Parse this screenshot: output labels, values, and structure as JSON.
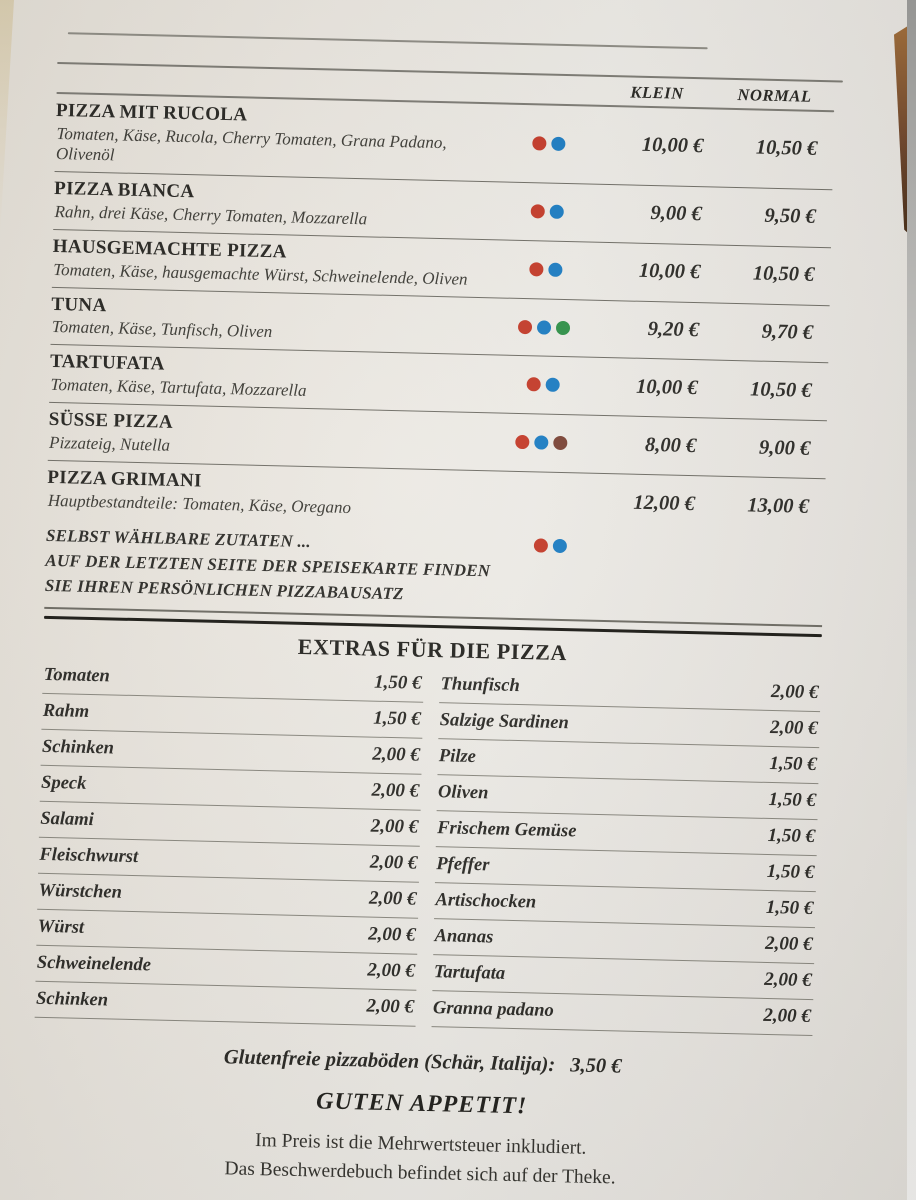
{
  "header": {
    "klein": "KLEIN",
    "normal": "NORMAL"
  },
  "dot_colors": {
    "red": "#c43a28",
    "blue": "#1b7cc2",
    "green": "#2f9147",
    "brown": "#7a4334"
  },
  "pizzas": [
    {
      "name": "PIZZA MIT RUCOLA",
      "desc": "Tomaten, Käse, Rucola, Cherry Tomaten, Grana Padano, Olivenöl",
      "dots": [
        "red",
        "blue"
      ],
      "klein": "10,00 €",
      "normal": "10,50 €"
    },
    {
      "name": "PIZZA BIANCA",
      "desc": "Rahn, drei Käse, Cherry Tomaten, Mozzarella",
      "dots": [
        "red",
        "blue"
      ],
      "klein": "9,00 €",
      "normal": "9,50 €"
    },
    {
      "name": "HAUSGEMACHTE PIZZA",
      "desc": "Tomaten, Käse, hausgemachte Würst, Schweinelende, Oliven",
      "dots": [
        "red",
        "blue"
      ],
      "klein": "10,00 €",
      "normal": "10,50 €"
    },
    {
      "name": "TUNA",
      "desc": "Tomaten, Käse, Tunfisch, Oliven",
      "dots": [
        "red",
        "blue",
        "green"
      ],
      "klein": "9,20 €",
      "normal": "9,70 €"
    },
    {
      "name": "TARTUFATA",
      "desc": "Tomaten, Käse, Tartufata, Mozzarella",
      "dots": [
        "red",
        "blue"
      ],
      "klein": "10,00 €",
      "normal": "10,50 €"
    },
    {
      "name": "SÜSSE PIZZA",
      "desc": "Pizzateig, Nutella",
      "dots": [
        "red",
        "blue",
        "brown"
      ],
      "klein": "8,00 €",
      "normal": "9,00 €"
    },
    {
      "name": "PIZZA GRIMANI",
      "desc": "Hauptbestandteile: Tomaten, Käse, Oregano",
      "dots": [],
      "klein": "12,00 €",
      "normal": "13,00 €"
    }
  ],
  "custom_note": {
    "line1": "SELBST WÄHLBARE ZUTATEN ...",
    "line2": "AUF DER LETZTEN SEITE DER SPEISEKARTE FINDEN",
    "line3": "SIE IHREN PERSÖNLICHEN PIZZABAUSATZ",
    "dots": [
      "red",
      "blue"
    ]
  },
  "extras": {
    "title": "EXTRAS FÜR DIE PIZZA",
    "left": [
      {
        "name": "Tomaten",
        "price": "1,50 €"
      },
      {
        "name": "Rahm",
        "price": "1,50 €"
      },
      {
        "name": "Schinken",
        "price": "2,00 €"
      },
      {
        "name": "Speck",
        "price": "2,00 €"
      },
      {
        "name": "Salami",
        "price": "2,00 €"
      },
      {
        "name": "Fleischwurst",
        "price": "2,00 €"
      },
      {
        "name": "Würstchen",
        "price": "2,00 €"
      },
      {
        "name": "Würst",
        "price": "2,00 €"
      },
      {
        "name": "Schweinelende",
        "price": "2,00 €"
      },
      {
        "name": "Schinken",
        "price": "2,00 €"
      }
    ],
    "right": [
      {
        "name": "Thunfisch",
        "price": "2,00 €"
      },
      {
        "name": "Salzige Sardinen",
        "price": "2,00 €"
      },
      {
        "name": "Pilze",
        "price": "1,50 €"
      },
      {
        "name": "Oliven",
        "price": "1,50 €"
      },
      {
        "name": "Frischem Gemüse",
        "price": "1,50 €"
      },
      {
        "name": "Pfeffer",
        "price": "1,50 €"
      },
      {
        "name": "Artischocken",
        "price": "1,50 €"
      },
      {
        "name": "Ananas",
        "price": "2,00 €"
      },
      {
        "name": "Tartufata",
        "price": "2,00 €"
      },
      {
        "name": "Granna padano",
        "price": "2,00 €"
      }
    ]
  },
  "gluten_note": {
    "label": "Glutenfreie pizzaböden (Schär, Italija):",
    "price": "3,50 €"
  },
  "closing": "GUTEN APPETIT!",
  "footer": {
    "line1": "Im Preis ist die Mehrwertsteuer inkludiert.",
    "line2": "Das Beschwerdebuch befindet sich auf der Theke."
  }
}
